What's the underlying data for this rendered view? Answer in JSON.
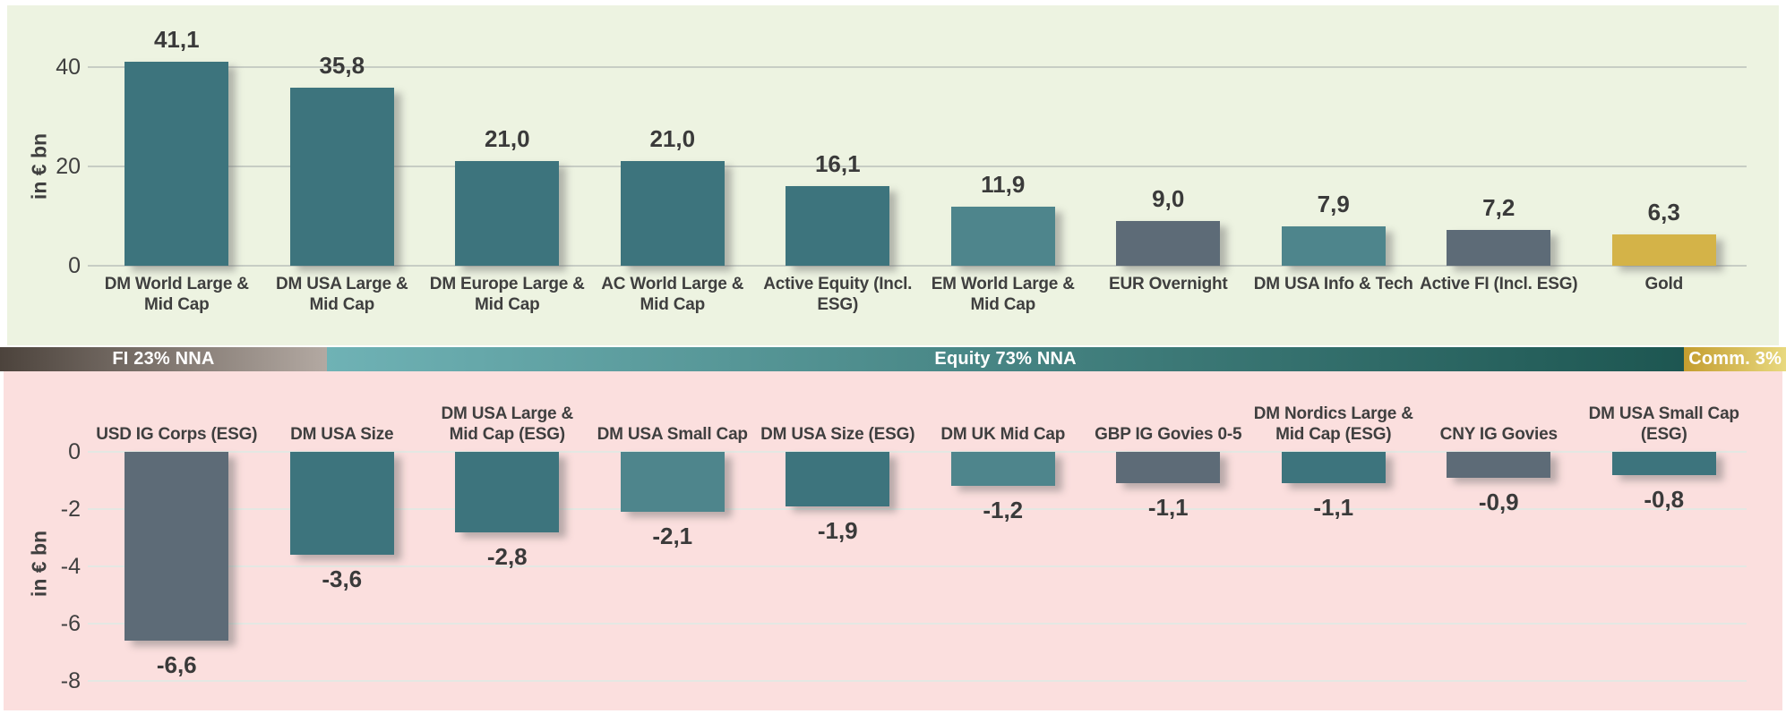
{
  "colors": {
    "teal": "#3D747D",
    "teal_light": "#4E858C",
    "slate": "#5D6B77",
    "gold": "#D4B348",
    "panel_top_bg": "#EDF3E1",
    "panel_bottom_bg": "#FBDFDE",
    "text": "#3F3F3F",
    "grid_top": "#C7CDC4",
    "grid_bottom": "#E4E8E3"
  },
  "band": {
    "segments": [
      {
        "label": "FI 23% NNA",
        "width_pct": 18.3,
        "gradient": [
          "#4C433C",
          "#B3A9A2"
        ]
      },
      {
        "label": "Equity 73% NNA",
        "width_pct": 76.0,
        "gradient": [
          "#6FB2B5",
          "#1D5651"
        ]
      },
      {
        "label": "Comm. 3%",
        "width_pct": 5.7,
        "gradient": [
          "#C49D2F",
          "#E8D97F"
        ]
      }
    ]
  },
  "chart_data": [
    {
      "type": "bar",
      "title": "",
      "xlabel": "",
      "ylabel": "in € bn",
      "ylim": [
        0,
        44
      ],
      "yticks": [
        0,
        20,
        40
      ],
      "ytick_labels": [
        "0",
        "20",
        "40"
      ],
      "grid": true,
      "legend_position": "none",
      "categories": [
        "DM World Large &\nMid Cap",
        "DM USA Large &\nMid Cap",
        "DM Europe Large &\nMid Cap",
        "AC World Large &\nMid Cap",
        "Active Equity (Incl.\nESG)",
        "EM World Large &\nMid Cap",
        "EUR Overnight",
        "DM USA Info & Tech",
        "Active FI (Incl. ESG)",
        "Gold"
      ],
      "values": [
        41.1,
        35.8,
        21.0,
        21.0,
        16.1,
        11.9,
        9.0,
        7.9,
        7.2,
        6.3
      ],
      "value_labels": [
        "41,1",
        "35,8",
        "21,0",
        "21,0",
        "16,1",
        "11,9",
        "9,0",
        "7,9",
        "7,2",
        "6,3"
      ],
      "bar_colors": [
        "teal",
        "teal",
        "teal",
        "teal",
        "teal",
        "teal_light",
        "slate",
        "teal_light",
        "slate",
        "gold"
      ]
    },
    {
      "type": "bar",
      "title": "",
      "xlabel": "",
      "ylabel": "in € bn",
      "ylim": [
        -8.8,
        0
      ],
      "yticks": [
        0,
        -2,
        -4,
        -6,
        -8
      ],
      "ytick_labels": [
        "0",
        "-2",
        "-4",
        "-6",
        "-8"
      ],
      "grid": true,
      "legend_position": "none",
      "categories": [
        "USD IG Corps (ESG)",
        "DM USA Size",
        "DM USA Large &\nMid Cap (ESG)",
        "DM USA Small Cap",
        "DM USA Size (ESG)",
        "DM UK Mid Cap",
        "GBP IG Govies 0-5",
        "DM Nordics Large &\nMid Cap (ESG)",
        "CNY IG Govies",
        "DM USA Small Cap\n(ESG)"
      ],
      "values": [
        -6.6,
        -3.6,
        -2.8,
        -2.1,
        -1.9,
        -1.2,
        -1.1,
        -1.1,
        -0.9,
        -0.8
      ],
      "value_labels": [
        "-6,6",
        "-3,6",
        "-2,8",
        "-2,1",
        "-1,9",
        "-1,2",
        "-1,1",
        "-1,1",
        "-0,9",
        "-0,8"
      ],
      "bar_colors": [
        "slate",
        "teal",
        "teal",
        "teal_light",
        "teal",
        "teal_light",
        "slate",
        "teal",
        "slate",
        "teal"
      ]
    }
  ]
}
